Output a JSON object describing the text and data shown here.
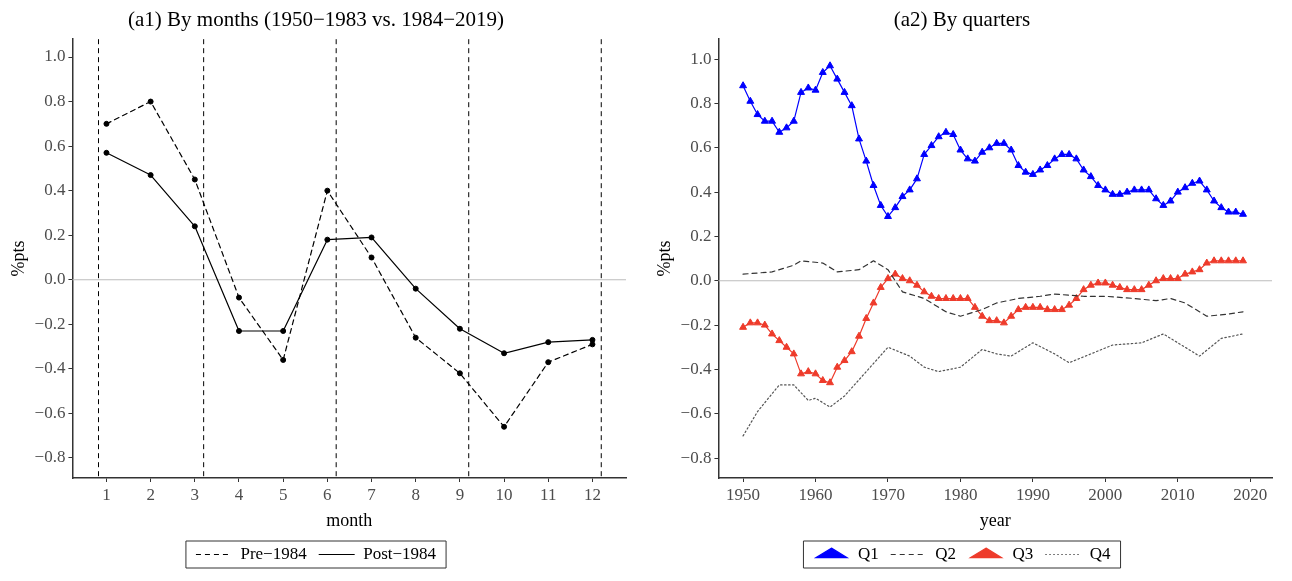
{
  "chart_data": [
    {
      "type": "line",
      "title": "(a1) By months (1950−1983 vs. 1984−2019)",
      "xlabel": "month",
      "ylabel": "%pts",
      "x": [
        1,
        2,
        3,
        4,
        5,
        6,
        7,
        8,
        9,
        10,
        11,
        12
      ],
      "series": [
        {
          "name": "Pre−1984",
          "color": "#000000",
          "line_style": "dashed",
          "marker": "circle",
          "values": [
            0.7,
            0.8,
            0.45,
            -0.08,
            -0.36,
            0.4,
            0.1,
            -0.26,
            -0.42,
            -0.66,
            -0.37,
            -0.29
          ]
        },
        {
          "name": "Post−1984",
          "color": "#000000",
          "line_style": "solid",
          "marker": "circle",
          "values": [
            0.57,
            0.47,
            0.24,
            -0.23,
            -0.23,
            0.18,
            0.19,
            -0.04,
            -0.22,
            -0.33,
            -0.28,
            -0.27
          ]
        }
      ],
      "xlim": [
        0.23,
        12.76
      ],
      "ylim": [
        -0.89,
        1.08
      ],
      "xticks": [
        1,
        2,
        3,
        4,
        5,
        6,
        7,
        8,
        9,
        10,
        11,
        12
      ],
      "yticks": [
        {
          "value": -0.8,
          "label": "−0.8"
        },
        {
          "value": -0.6,
          "label": "−0.6"
        },
        {
          "value": -0.4,
          "label": "−0.4"
        },
        {
          "value": -0.2,
          "label": "−0.2"
        },
        {
          "value": 0,
          "label": "0.0"
        },
        {
          "value": 0.2,
          "label": "0.2"
        },
        {
          "value": 0.4,
          "label": "0.4"
        },
        {
          "value": 0.6,
          "label": "0.6"
        },
        {
          "value": 0.8,
          "label": "0.8"
        },
        {
          "value": 1,
          "label": "1.0"
        }
      ],
      "ref_lines": [
        {
          "axis": "y",
          "value": 0,
          "color": "#bdbdbd",
          "line_style": "solid"
        },
        {
          "axis": "x",
          "value": 0.82,
          "color": "#000000",
          "line_style": "dashed"
        },
        {
          "axis": "x",
          "value": 3.2,
          "color": "#000000",
          "line_style": "dashed"
        },
        {
          "axis": "x",
          "value": 6.2,
          "color": "#000000",
          "line_style": "dashed"
        },
        {
          "axis": "x",
          "value": 9.2,
          "color": "#000000",
          "line_style": "dashed"
        },
        {
          "axis": "x",
          "value": 12.2,
          "color": "#000000",
          "line_style": "dashed"
        }
      ],
      "legend": "bottom",
      "grid": false
    },
    {
      "type": "line",
      "title": "(a2) By quarters",
      "xlabel": "year",
      "ylabel": "%pts",
      "x": [
        1950,
        1951,
        1952,
        1953,
        1954,
        1955,
        1956,
        1957,
        1958,
        1959,
        1960,
        1961,
        1962,
        1963,
        1964,
        1965,
        1966,
        1967,
        1968,
        1969,
        1970,
        1971,
        1972,
        1973,
        1974,
        1975,
        1976,
        1977,
        1978,
        1979,
        1980,
        1981,
        1982,
        1983,
        1984,
        1985,
        1986,
        1987,
        1988,
        1989,
        1990,
        1991,
        1992,
        1993,
        1994,
        1995,
        1996,
        1997,
        1998,
        1999,
        2000,
        2001,
        2002,
        2003,
        2004,
        2005,
        2006,
        2007,
        2008,
        2009,
        2010,
        2011,
        2012,
        2013,
        2014,
        2015,
        2016,
        2017,
        2018,
        2019
      ],
      "series": [
        {
          "name": "Q1",
          "color": "#0000ff",
          "line_style": "solid",
          "marker": "triangle",
          "values": [
            0.88,
            0.81,
            0.75,
            0.72,
            0.72,
            0.67,
            0.69,
            0.72,
            0.85,
            0.87,
            0.86,
            0.94,
            0.97,
            0.91,
            0.85,
            0.79,
            0.64,
            0.54,
            0.43,
            0.34,
            0.29,
            0.33,
            0.38,
            0.41,
            0.46,
            0.57,
            0.61,
            0.65,
            0.67,
            0.66,
            0.59,
            0.55,
            0.54,
            0.58,
            0.6,
            0.62,
            0.62,
            0.59,
            0.52,
            0.49,
            0.48,
            0.5,
            0.52,
            0.55,
            0.57,
            0.57,
            0.55,
            0.5,
            0.47,
            0.43,
            0.41,
            0.39,
            0.39,
            0.4,
            0.41,
            0.41,
            0.41,
            0.37,
            0.34,
            0.36,
            0.4,
            0.42,
            0.44,
            0.45,
            0.41,
            0.36,
            0.33,
            0.31,
            0.31,
            0.3
          ]
        },
        {
          "name": "Q2",
          "color": "#333333",
          "line_style": "dashed",
          "marker": "none",
          "x": [
            1950,
            1954,
            1957,
            1958,
            1961,
            1963,
            1966,
            1968,
            1970,
            1972,
            1975,
            1978,
            1980,
            1983,
            1985,
            1988,
            1991,
            1993,
            1997,
            2000,
            2004,
            2007,
            2009,
            2011,
            2014,
            2017,
            2019
          ],
          "values": [
            0.03,
            0.04,
            0.07,
            0.09,
            0.08,
            0.04,
            0.05,
            0.09,
            0.05,
            -0.05,
            -0.08,
            -0.14,
            -0.16,
            -0.13,
            -0.1,
            -0.08,
            -0.07,
            -0.06,
            -0.07,
            -0.07,
            -0.08,
            -0.09,
            -0.08,
            -0.1,
            -0.16,
            -0.15,
            -0.14
          ]
        },
        {
          "name": "Q3",
          "color": "#ee3b2b",
          "line_style": "solid",
          "marker": "triangle",
          "values": [
            -0.21,
            -0.19,
            -0.19,
            -0.2,
            -0.24,
            -0.27,
            -0.3,
            -0.33,
            -0.42,
            -0.41,
            -0.42,
            -0.45,
            -0.46,
            -0.39,
            -0.36,
            -0.32,
            -0.25,
            -0.17,
            -0.1,
            -0.03,
            0.01,
            0.03,
            0.01,
            0.0,
            -0.02,
            -0.05,
            -0.07,
            -0.08,
            -0.08,
            -0.08,
            -0.08,
            -0.08,
            -0.12,
            -0.16,
            -0.18,
            -0.18,
            -0.19,
            -0.16,
            -0.13,
            -0.12,
            -0.12,
            -0.12,
            -0.13,
            -0.13,
            -0.13,
            -0.11,
            -0.08,
            -0.04,
            -0.02,
            -0.01,
            -0.01,
            -0.02,
            -0.03,
            -0.04,
            -0.04,
            -0.04,
            -0.02,
            0.0,
            0.01,
            0.01,
            0.01,
            0.03,
            0.04,
            0.05,
            0.08,
            0.09,
            0.09,
            0.09,
            0.09,
            0.09
          ]
        },
        {
          "name": "Q4",
          "color": "#555555",
          "line_style": "dotted",
          "marker": "none",
          "x": [
            1950,
            1952,
            1954,
            1955,
            1957,
            1959,
            1960,
            1962,
            1964,
            1967,
            1970,
            1973,
            1975,
            1977,
            1980,
            1983,
            1985,
            1987,
            1990,
            1993,
            1995,
            1998,
            2001,
            2005,
            2008,
            2010,
            2013,
            2016,
            2019
          ],
          "values": [
            -0.7,
            -0.59,
            -0.51,
            -0.47,
            -0.47,
            -0.54,
            -0.53,
            -0.57,
            -0.52,
            -0.41,
            -0.3,
            -0.34,
            -0.39,
            -0.41,
            -0.39,
            -0.31,
            -0.33,
            -0.34,
            -0.28,
            -0.33,
            -0.37,
            -0.33,
            -0.29,
            -0.28,
            -0.24,
            -0.28,
            -0.34,
            -0.26,
            -0.24
          ]
        }
      ],
      "xlim": [
        1946.6,
        2023
      ],
      "ylim": [
        -0.89,
        1.09
      ],
      "xticks": [
        1950,
        1960,
        1970,
        1980,
        1990,
        2000,
        2010,
        2020
      ],
      "yticks": [
        {
          "value": -0.8,
          "label": "−0.8"
        },
        {
          "value": -0.6,
          "label": "−0.6"
        },
        {
          "value": -0.4,
          "label": "−0.4"
        },
        {
          "value": -0.2,
          "label": "−0.2"
        },
        {
          "value": 0,
          "label": "0.0"
        },
        {
          "value": 0.2,
          "label": "0.2"
        },
        {
          "value": 0.4,
          "label": "0.4"
        },
        {
          "value": 0.6,
          "label": "0.6"
        },
        {
          "value": 0.8,
          "label": "0.8"
        },
        {
          "value": 1,
          "label": "1.0"
        }
      ],
      "ref_lines": [
        {
          "axis": "y",
          "value": 0,
          "color": "#bdbdbd",
          "line_style": "solid"
        }
      ],
      "legend": "bottom",
      "grid": false
    }
  ]
}
